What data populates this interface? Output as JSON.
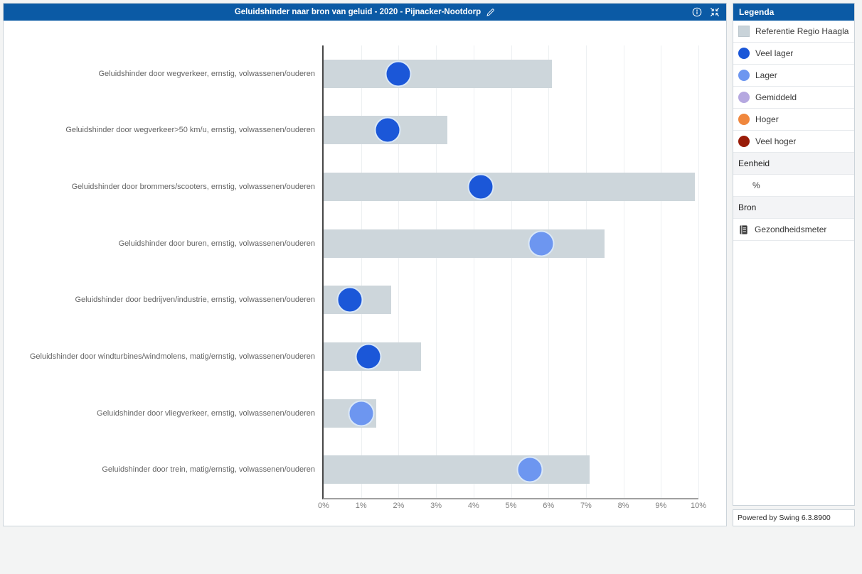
{
  "header": {
    "title": "Geluidshinder naar bron van geluid - 2020 - Pijnacker-Nootdorp"
  },
  "icons": {
    "edit": "pencil",
    "info": "info-circle",
    "collapse": "collapse-arrows",
    "source": "book"
  },
  "legend": {
    "title": "Legenda",
    "reference": {
      "label": "Referentie Regio Haaglanden",
      "color": "#c9d3d9"
    },
    "items": [
      {
        "label": "Veel lager",
        "color": "#1b57d8"
      },
      {
        "label": "Lager",
        "color": "#6d96f0"
      },
      {
        "label": "Gemiddeld",
        "color": "#b5a8e0"
      },
      {
        "label": "Hoger",
        "color": "#f0873d"
      },
      {
        "label": "Veel hoger",
        "color": "#991c08"
      }
    ],
    "sections": [
      {
        "header": "Eenheid",
        "value": "%"
      },
      {
        "header": "Bron",
        "value": "Gezondheidsmeter"
      }
    ]
  },
  "footer": {
    "powered_by": "Powered by Swing 6.3.8900"
  },
  "chart_data": {
    "type": "bar",
    "orientation": "horizontal",
    "title": "Geluidshinder naar bron van geluid - 2020 - Pijnacker-Nootdorp",
    "unit": "%",
    "grid": true,
    "xlim": [
      0,
      10
    ],
    "x_ticks": [
      "0%",
      "1%",
      "2%",
      "3%",
      "4%",
      "5%",
      "6%",
      "7%",
      "8%",
      "9%",
      "10%"
    ],
    "categories": [
      "Geluidshinder door wegverkeer, ernstig, volwassenen/ouderen",
      "Geluidshinder door wegverkeer>50 km/u, ernstig, volwassenen/ouderen",
      "Geluidshinder door brommers/scooters, ernstig, volwassenen/ouderen",
      "Geluidshinder door buren, ernstig, volwassenen/ouderen",
      "Geluidshinder door bedrijven/industrie, ernstig, volwassenen/ouderen",
      "Geluidshinder door windturbines/windmolens, matig/ernstig, volwassenen/ouderen",
      "Geluidshinder door vliegverkeer, ernstig, volwassenen/ouderen",
      "Geluidshinder door trein, matig/ernstig, volwassenen/ouderen"
    ],
    "series": [
      {
        "name": "Referentie Regio Haaglanden",
        "mark": "bar",
        "color": "#cdd6db",
        "values": [
          6.1,
          3.3,
          9.9,
          7.5,
          1.8,
          2.6,
          1.4,
          7.1
        ]
      },
      {
        "name": "Pijnacker-Nootdorp",
        "mark": "dot",
        "values": [
          2.0,
          1.7,
          4.2,
          5.8,
          0.7,
          1.2,
          1.0,
          5.5
        ],
        "classes": [
          "Veel lager",
          "Veel lager",
          "Veel lager",
          "Lager",
          "Veel lager",
          "Veel lager",
          "Lager",
          "Lager"
        ],
        "colors": [
          "#1b57d8",
          "#1b57d8",
          "#1b57d8",
          "#6d96f0",
          "#1b57d8",
          "#1b57d8",
          "#6d96f0",
          "#6d96f0"
        ]
      }
    ]
  }
}
